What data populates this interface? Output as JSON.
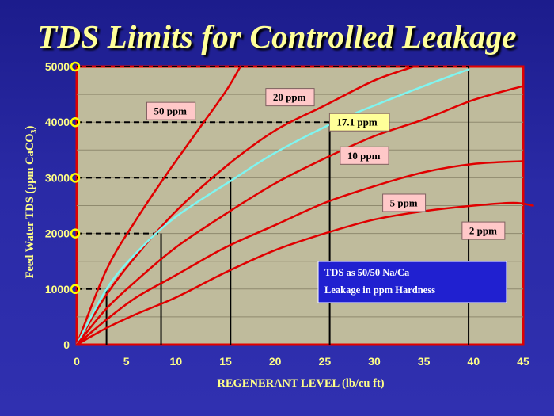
{
  "slide_title": "TDS Limits for Controlled Leakage",
  "colors": {
    "background": "#2222a0",
    "plot_fill": "#bfbb9c",
    "plot_border": "#e00000",
    "curve": "#e00000",
    "highlight_curve": "#7ff5f0",
    "label_box": "#ffc8c8",
    "highlight_label_box": "#ffff99",
    "note_box": "#2020d0",
    "text_yellow": "#ffff88",
    "marker_yellow": "#ffff00"
  },
  "chart_data": {
    "type": "line",
    "title": "TDS Limits for Controlled Leakage",
    "xlabel": "REGENERANT LEVEL (lb/cu ft)",
    "ylabel_parts": [
      "Feed Water   TDS (ppm CaCO",
      "3",
      ")"
    ],
    "xlim": [
      0,
      45
    ],
    "ylim": [
      0,
      5000
    ],
    "x_ticks": [
      0,
      5,
      10,
      15,
      20,
      25,
      30,
      35,
      40,
      45
    ],
    "y_ticks": [
      0,
      1000,
      2000,
      3000,
      4000,
      5000
    ],
    "grid": true,
    "series": [
      {
        "name": "50 ppm",
        "highlight": false,
        "x": [
          0,
          3,
          6,
          9,
          12,
          15,
          16.5
        ],
        "y": [
          0,
          1350,
          2250,
          3050,
          3800,
          4550,
          5000
        ]
      },
      {
        "name": "20 ppm",
        "highlight": false,
        "x": [
          0,
          3,
          6,
          10,
          15,
          20,
          25,
          30,
          34
        ],
        "y": [
          0,
          900,
          1600,
          2400,
          3200,
          3850,
          4300,
          4750,
          5000
        ]
      },
      {
        "name": "17.1 ppm",
        "highlight": true,
        "x": [
          0,
          3,
          6,
          10,
          16,
          20,
          26,
          30,
          35,
          39.5
        ],
        "y": [
          0,
          1000,
          1650,
          2300,
          3000,
          3450,
          4000,
          4300,
          4650,
          4950
        ]
      },
      {
        "name": "10 ppm",
        "highlight": false,
        "x": [
          0,
          3,
          6,
          10,
          15,
          20,
          25,
          30,
          35,
          40,
          45
        ],
        "y": [
          0,
          650,
          1150,
          1750,
          2350,
          2900,
          3350,
          3750,
          4050,
          4400,
          4650
        ]
      },
      {
        "name": "5 ppm",
        "highlight": false,
        "x": [
          0,
          3,
          6,
          10,
          15,
          20,
          25,
          30,
          35,
          40,
          45
        ],
        "y": [
          0,
          450,
          850,
          1250,
          1750,
          2150,
          2550,
          2850,
          3100,
          3250,
          3300
        ]
      },
      {
        "name": "2 ppm",
        "highlight": false,
        "x": [
          0,
          3,
          6,
          10,
          15,
          20,
          25,
          30,
          35,
          40,
          44,
          46
        ],
        "y": [
          0,
          300,
          550,
          850,
          1300,
          1700,
          2000,
          2250,
          2400,
          2500,
          2550,
          2500
        ]
      }
    ],
    "reference_lines": [
      {
        "y": 1000,
        "x": 3
      },
      {
        "y": 2000,
        "x": 8.5
      },
      {
        "y": 3000,
        "x": 15.5
      },
      {
        "y": 4000,
        "x": 25.5
      },
      {
        "y": 5000,
        "x": 39.5
      }
    ],
    "curve_labels": [
      {
        "text": "50 ppm",
        "x": 9.5,
        "y": 4200
      },
      {
        "text": "20 ppm",
        "x": 21.5,
        "y": 4450
      },
      {
        "text": "17.1 ppm",
        "x": 28.5,
        "y": 4000,
        "highlight": true
      },
      {
        "text": "10 ppm",
        "x": 29,
        "y": 3400
      },
      {
        "text": "5 ppm",
        "x": 33,
        "y": 2550
      },
      {
        "text": "2 ppm",
        "x": 41,
        "y": 2050
      }
    ],
    "note": {
      "lines": [
        "TDS as 50/50 Na/Ca",
        "Leakage in ppm Hardness"
      ]
    }
  }
}
